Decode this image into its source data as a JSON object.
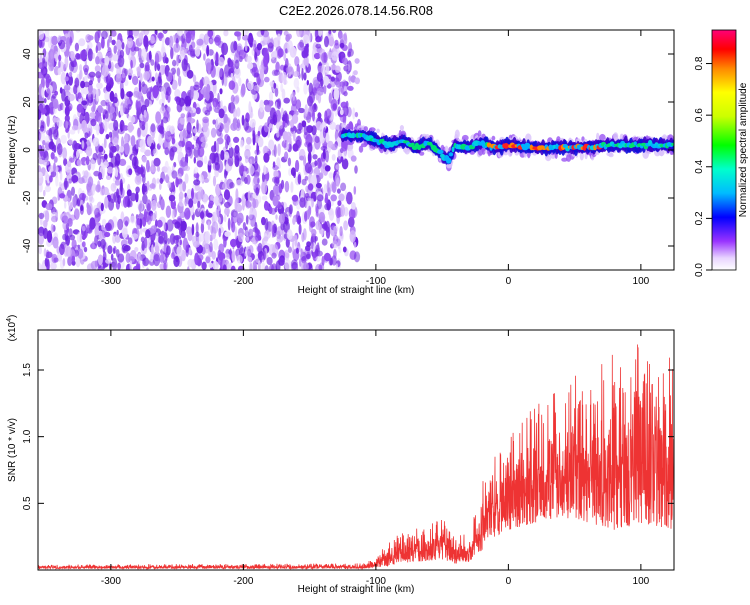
{
  "title": "C2E2.2026.078.14.56.R08",
  "colors": {
    "signal": "#ee3333",
    "scatter": "#8a2be2",
    "axis": "#000000"
  },
  "chart_data": [
    {
      "type": "heatmap",
      "name": "spectrogram",
      "xlabel": "Height of straight line (km)",
      "ylabel": "Frequency (Hz)",
      "xlim": [
        -355,
        125
      ],
      "ylim": [
        -50,
        50
      ],
      "x_ticks": [
        -300,
        -200,
        -100,
        0,
        100
      ],
      "y_ticks": [
        -40,
        -20,
        0,
        20,
        40
      ],
      "noise_region": {
        "x_range": [
          -355,
          -122
        ],
        "description": "broadband noise across full frequency range"
      },
      "signal_band": {
        "x_range": [
          -125,
          125
        ],
        "center_frequency": [
          [
            -125,
            6
          ],
          [
            -110,
            6
          ],
          [
            -100,
            4
          ],
          [
            -90,
            2
          ],
          [
            -80,
            4
          ],
          [
            -70,
            1
          ],
          [
            -60,
            3
          ],
          [
            -50,
            -2
          ],
          [
            -45,
            -4
          ],
          [
            -40,
            2
          ],
          [
            -30,
            1
          ],
          [
            -20,
            3
          ],
          [
            -10,
            1
          ],
          [
            0,
            2
          ],
          [
            20,
            1
          ],
          [
            40,
            1
          ],
          [
            60,
            1
          ],
          [
            80,
            2
          ],
          [
            100,
            2
          ],
          [
            125,
            2
          ]
        ]
      },
      "colorbar": {
        "label": "Normalized spectral amplitude",
        "range": [
          0,
          0.93
        ],
        "ticks": [
          "0.0",
          "0.2",
          "0.4",
          "0.6",
          "0.8"
        ]
      }
    },
    {
      "type": "line",
      "name": "snr",
      "xlabel": "Height of straight line (km)",
      "ylabel": "SNR (10 * v/v)",
      "y_multiplier": "(x10",
      "y_multiplier_exp": "4",
      "y_multiplier_close": ")",
      "xlim": [
        -355,
        125
      ],
      "ylim": [
        0,
        1.8
      ],
      "x_ticks": [
        -300,
        -200,
        -100,
        0,
        100
      ],
      "y_ticks": [
        "0.5",
        "1.0",
        "1.5"
      ],
      "envelope": [
        {
          "x": -355,
          "low": 0.01,
          "high": 0.04
        },
        {
          "x": -110,
          "low": 0.01,
          "high": 0.05
        },
        {
          "x": -100,
          "low": 0.02,
          "high": 0.1
        },
        {
          "x": -90,
          "low": 0.03,
          "high": 0.22
        },
        {
          "x": -80,
          "low": 0.05,
          "high": 0.3
        },
        {
          "x": -70,
          "low": 0.06,
          "high": 0.32
        },
        {
          "x": -60,
          "low": 0.07,
          "high": 0.36
        },
        {
          "x": -50,
          "low": 0.08,
          "high": 0.38
        },
        {
          "x": -40,
          "low": 0.05,
          "high": 0.3
        },
        {
          "x": -30,
          "low": 0.06,
          "high": 0.25
        },
        {
          "x": -20,
          "low": 0.15,
          "high": 0.7
        },
        {
          "x": -10,
          "low": 0.25,
          "high": 0.9
        },
        {
          "x": 0,
          "low": 0.3,
          "high": 1.0
        },
        {
          "x": 20,
          "low": 0.35,
          "high": 1.3
        },
        {
          "x": 40,
          "low": 0.4,
          "high": 1.45
        },
        {
          "x": 60,
          "low": 0.35,
          "high": 1.5
        },
        {
          "x": 80,
          "low": 0.3,
          "high": 1.65
        },
        {
          "x": 100,
          "low": 0.35,
          "high": 1.75
        },
        {
          "x": 125,
          "low": 0.3,
          "high": 1.6
        }
      ]
    }
  ]
}
